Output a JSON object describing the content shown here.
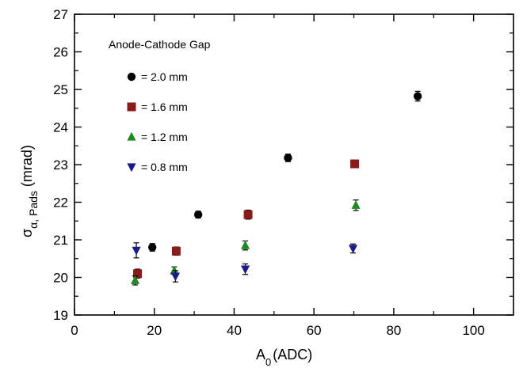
{
  "chart_data": {
    "type": "scatter",
    "title": "",
    "legend_title": "Anode-Cathode Gap",
    "legend_position": "top-left",
    "grid": false,
    "xlabel": {
      "main": "A",
      "sub": "0",
      "rest": "(ADC)"
    },
    "ylabel": {
      "main": "σ",
      "sub": "α, Pads",
      "rest": " (mrad)"
    },
    "xlim": [
      0,
      110
    ],
    "ylim": [
      19,
      27
    ],
    "xticks": [
      0,
      20,
      40,
      60,
      80,
      100
    ],
    "yticks": [
      19,
      20,
      21,
      22,
      23,
      24,
      25,
      26,
      27
    ],
    "series": [
      {
        "name": "= 2.0 mm",
        "marker": "circle",
        "color": "#000000",
        "points": [
          {
            "x": 19.5,
            "y": 20.8,
            "err": 0.1
          },
          {
            "x": 31.0,
            "y": 21.67,
            "err": 0.09
          },
          {
            "x": 53.5,
            "y": 23.18,
            "err": 0.1
          },
          {
            "x": 86.0,
            "y": 24.82,
            "err": 0.13
          }
        ]
      },
      {
        "name": "= 1.6 mm",
        "marker": "square",
        "color": "#8b1a1a",
        "points": [
          {
            "x": 15.8,
            "y": 20.1,
            "err": 0.12
          },
          {
            "x": 25.5,
            "y": 20.7,
            "err": 0.11
          },
          {
            "x": 43.5,
            "y": 21.67,
            "err": 0.12
          },
          {
            "x": 70.2,
            "y": 23.02,
            "err": 0.1
          }
        ]
      },
      {
        "name": "= 1.2 mm",
        "marker": "triangle-up",
        "color": "#1f8a1f",
        "points": [
          {
            "x": 15.2,
            "y": 19.92,
            "err": 0.12
          },
          {
            "x": 25.0,
            "y": 20.18,
            "err": 0.1
          },
          {
            "x": 42.8,
            "y": 20.85,
            "err": 0.12
          },
          {
            "x": 70.5,
            "y": 21.92,
            "err": 0.14
          }
        ]
      },
      {
        "name": "= 0.8 mm",
        "marker": "triangle-down",
        "color": "#1a1a8b",
        "points": [
          {
            "x": 15.5,
            "y": 20.72,
            "err": 0.2
          },
          {
            "x": 25.3,
            "y": 20.03,
            "err": 0.15
          },
          {
            "x": 42.8,
            "y": 20.22,
            "err": 0.14
          },
          {
            "x": 69.8,
            "y": 20.77,
            "err": 0.12
          }
        ]
      }
    ]
  }
}
